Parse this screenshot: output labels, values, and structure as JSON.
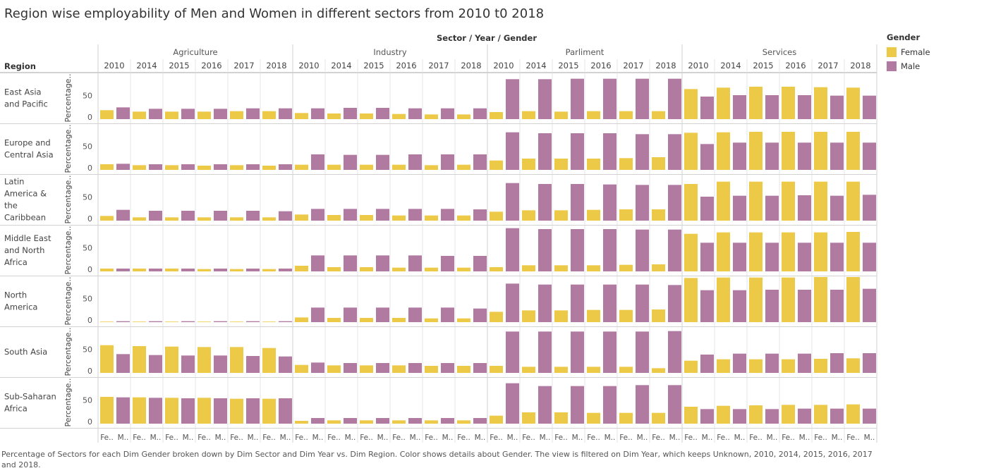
{
  "page": {
    "title": "Region wise employability of Men and Women in different sectors from 2010 t0 2018",
    "caption": "Percentage of Sectors  for each Dim Gender broken down by Dim Sector and Dim Year vs. Dim Region.  Color shows details about Gender. The view is filtered on Dim Year, which keeps Unknown, 2010, 2014, 2015, 2016, 2017 and 2018."
  },
  "legend": {
    "title": "Gender",
    "items": [
      {
        "label": "Female",
        "color": "#EDC948"
      },
      {
        "label": "Male",
        "color": "#B07AA1"
      }
    ]
  },
  "chart_data": {
    "type": "bar",
    "column_header_title": "Sector / Year / Gender",
    "row_header_title": "Region",
    "axis_label": "Percentage..",
    "axis_ticks": [
      "50",
      "0"
    ],
    "ylim": [
      0,
      90
    ],
    "sectors": [
      "Agriculture",
      "Industry",
      "Parliment",
      "Services"
    ],
    "years": [
      "2010",
      "2014",
      "2015",
      "2016",
      "2017",
      "2018"
    ],
    "gender_tick_labels": [
      "Fe..",
      "M.."
    ],
    "regions": [
      "East Asia and Pacific",
      "Europe and Central Asia",
      "Latin America & the Caribbean",
      "Middle East and North Africa",
      "North America",
      "South Asia",
      "Sub-Saharan Africa"
    ],
    "region_label_lines": [
      [
        "East Asia",
        "and Pacific"
      ],
      [
        "Europe and",
        "Central Asia"
      ],
      [
        "Latin",
        "America &",
        "the",
        "Caribbean"
      ],
      [
        "Middle East",
        "and North",
        "Africa"
      ],
      [
        "North",
        "America"
      ],
      [
        "South Asia"
      ],
      [
        "Sub-Saharan",
        "Africa"
      ]
    ],
    "series": [
      {
        "name": "Female",
        "values": [
          [
            [
              19,
              16,
              16,
              16,
              17,
              17
            ],
            [
              13,
              12,
              12,
              11,
              10,
              10
            ],
            [
              15,
              17,
              16,
              17,
              17,
              17
            ],
            [
              64,
              67,
              69,
              69,
              68,
              67
            ]
          ],
          [
            [
              12,
              10,
              10,
              9,
              10,
              9
            ],
            [
              11,
              11,
              11,
              11,
              10,
              11
            ],
            [
              20,
              24,
              24,
              24,
              25,
              27
            ],
            [
              79,
              80,
              81,
              81,
              81,
              81
            ]
          ],
          [
            [
              10,
              7,
              7,
              7,
              7,
              7
            ],
            [
              13,
              12,
              12,
              11,
              11,
              11
            ],
            [
              19,
              22,
              22,
              23,
              24,
              24
            ],
            [
              78,
              83,
              83,
              83,
              83,
              83
            ]
          ],
          [
            [
              6,
              6,
              6,
              5,
              5,
              5
            ],
            [
              12,
              9,
              9,
              8,
              8,
              8
            ],
            [
              9,
              13,
              13,
              13,
              14,
              15
            ],
            [
              80,
              83,
              83,
              83,
              83,
              84
            ]
          ],
          [
            [
              1,
              1,
              1,
              1,
              1,
              1
            ],
            [
              10,
              9,
              9,
              9,
              8,
              8
            ],
            [
              22,
              25,
              25,
              26,
              26,
              27
            ],
            [
              94,
              95,
              95,
              95,
              96,
              96
            ]
          ],
          [
            [
              59,
              57,
              56,
              55,
              55,
              53
            ],
            [
              17,
              16,
              16,
              16,
              15,
              15
            ],
            [
              15,
              13,
              13,
              13,
              13,
              10
            ],
            [
              26,
              29,
              29,
              29,
              30,
              31
            ]
          ],
          [
            [
              57,
              56,
              55,
              55,
              53,
              53
            ],
            [
              6,
              7,
              7,
              7,
              7,
              7
            ],
            [
              17,
              24,
              24,
              23,
              23,
              23
            ],
            [
              36,
              38,
              39,
              40,
              40,
              41
            ]
          ]
        ]
      },
      {
        "name": "Male",
        "values": [
          [
            [
              25,
              22,
              22,
              22,
              23,
              23
            ],
            [
              23,
              24,
              24,
              23,
              23,
              23
            ],
            [
              85,
              85,
              86,
              86,
              86,
              86
            ],
            [
              48,
              51,
              51,
              51,
              50,
              50
            ]
          ],
          [
            [
              13,
              12,
              12,
              12,
              12,
              12
            ],
            [
              33,
              32,
              32,
              33,
              33,
              33
            ],
            [
              80,
              78,
              78,
              78,
              76,
              76
            ],
            [
              55,
              58,
              58,
              58,
              58,
              58
            ]
          ],
          [
            [
              23,
              21,
              21,
              21,
              21,
              20
            ],
            [
              25,
              25,
              25,
              25,
              25,
              24
            ],
            [
              80,
              78,
              78,
              77,
              76,
              76
            ],
            [
              51,
              53,
              53,
              54,
              53,
              55
            ]
          ],
          [
            [
              6,
              6,
              6,
              6,
              6,
              6
            ],
            [
              34,
              34,
              34,
              34,
              33,
              33
            ],
            [
              92,
              90,
              90,
              90,
              89,
              89
            ],
            [
              61,
              61,
              61,
              61,
              61,
              61
            ]
          ],
          [
            [
              2,
              2,
              2,
              2,
              2,
              2
            ],
            [
              31,
              31,
              31,
              31,
              31,
              29
            ],
            [
              82,
              80,
              80,
              80,
              80,
              79
            ],
            [
              68,
              68,
              69,
              69,
              69,
              71
            ]
          ],
          [
            [
              40,
              38,
              37,
              37,
              36,
              35
            ],
            [
              22,
              21,
              21,
              21,
              21,
              21
            ],
            [
              88,
              88,
              88,
              88,
              88,
              89
            ],
            [
              39,
              41,
              41,
              41,
              42,
              42
            ]
          ],
          [
            [
              56,
              55,
              54,
              54,
              54,
              54
            ],
            [
              12,
              12,
              12,
              12,
              12,
              12
            ],
            [
              86,
              80,
              80,
              80,
              82,
              82
            ],
            [
              31,
              31,
              31,
              32,
              32,
              32
            ]
          ]
        ]
      }
    ]
  }
}
